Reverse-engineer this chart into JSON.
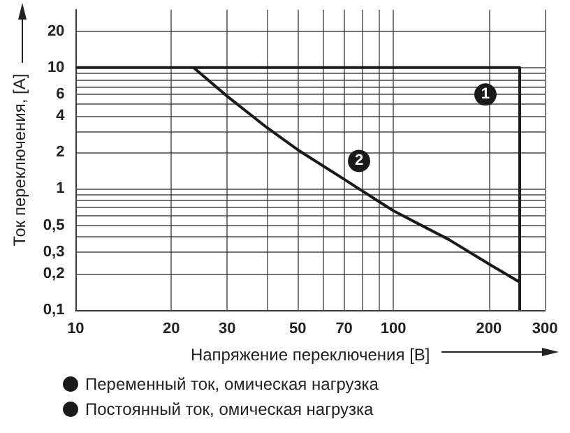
{
  "chart_data": {
    "type": "line",
    "xlabel": "Напряжение переключения [B]",
    "ylabel": "Ток переключения, [A]",
    "log": "xy",
    "xlim": [
      10,
      300
    ],
    "ylim": [
      0.1,
      30
    ],
    "xticks": [
      10,
      20,
      30,
      {
        "value": 40,
        "label": null
      },
      50,
      {
        "value": 60,
        "label": null
      },
      70,
      {
        "value": 80,
        "label": null
      },
      {
        "value": 90,
        "label": null
      },
      100,
      200,
      300
    ],
    "yticks": [
      {
        "value": 0.1,
        "label": "0,1"
      },
      {
        "value": 0.2,
        "label": "0,2"
      },
      {
        "value": 0.3,
        "label": "0,3"
      },
      {
        "value": 0.4,
        "label": null
      },
      {
        "value": 0.5,
        "label": "0,5"
      },
      {
        "value": 0.6,
        "label": null
      },
      {
        "value": 0.7,
        "label": null
      },
      {
        "value": 0.8,
        "label": null
      },
      {
        "value": 0.9,
        "label": null
      },
      1,
      2,
      {
        "value": 3,
        "label": null
      },
      4,
      {
        "value": 5,
        "label": null
      },
      6,
      {
        "value": 7,
        "label": null
      },
      {
        "value": 8,
        "label": null
      },
      {
        "value": 9,
        "label": null
      },
      10,
      20
    ],
    "grid": true,
    "legend": "bottom",
    "marker": "none",
    "series": [
      {
        "name": "Переменный ток, омическая нагрузка",
        "color": "#1a1a1a",
        "x": [
          10,
          250,
          250
        ],
        "values": [
          10,
          10,
          0.1
        ]
      },
      {
        "name": "Постоянный ток, омическая нагрузка",
        "color": "#1a1a1a",
        "x": [
          23.5,
          30,
          40,
          50,
          70,
          100,
          150,
          200,
          250
        ],
        "values": [
          10,
          5.8,
          3.2,
          2.1,
          1.2,
          0.66,
          0.38,
          0.24,
          0.17
        ]
      }
    ],
    "annotations": [
      {
        "text": "1",
        "x": 195,
        "y": 6
      },
      {
        "text": "2",
        "x": 78,
        "y": 1.7
      }
    ]
  }
}
